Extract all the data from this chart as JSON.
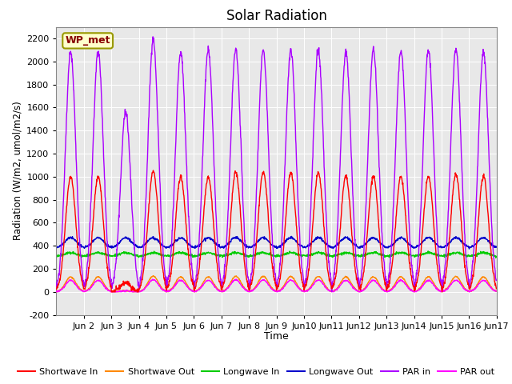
{
  "title": "Solar Radiation",
  "xlabel": "Time",
  "ylabel": "Radiation (W/m2, umol/m2/s)",
  "ylim": [
    -200,
    2300
  ],
  "yticks": [
    -200,
    0,
    200,
    400,
    600,
    800,
    1000,
    1200,
    1400,
    1600,
    1800,
    2000,
    2200
  ],
  "xlim": [
    1,
    17
  ],
  "fig_bg_color": "#ffffff",
  "plot_bg_color": "#e8e8e8",
  "station_label": "WP_met",
  "legend_items": [
    {
      "label": "Shortwave In",
      "color": "#ff0000"
    },
    {
      "label": "Shortwave Out",
      "color": "#ff8800"
    },
    {
      "label": "Longwave In",
      "color": "#00cc00"
    },
    {
      "label": "Longwave Out",
      "color": "#0000cc"
    },
    {
      "label": "PAR in",
      "color": "#aa00ff"
    },
    {
      "label": "PAR out",
      "color": "#ff00ff"
    }
  ],
  "shortwave_in_peak": 1000,
  "shortwave_out_peak": 130,
  "longwave_in_base": 310,
  "longwave_out_base": 380,
  "longwave_out_daytime_bump": 90,
  "longwave_in_daytime_bump": 30,
  "par_in_peak": 2080,
  "par_out_peak": 100,
  "sw_in_var": [
    1.0,
    1.0,
    0.08,
    1.05,
    1.0,
    1.0,
    1.04,
    1.04,
    1.03,
    1.03,
    1.0,
    1.0,
    1.0,
    1.0,
    1.02,
    1.0
  ],
  "par_in_var": [
    1.0,
    1.0,
    0.75,
    1.05,
    1.0,
    1.01,
    1.01,
    1.01,
    1.01,
    1.01,
    1.0,
    1.01,
    1.01,
    1.01,
    1.01,
    1.0
  ]
}
